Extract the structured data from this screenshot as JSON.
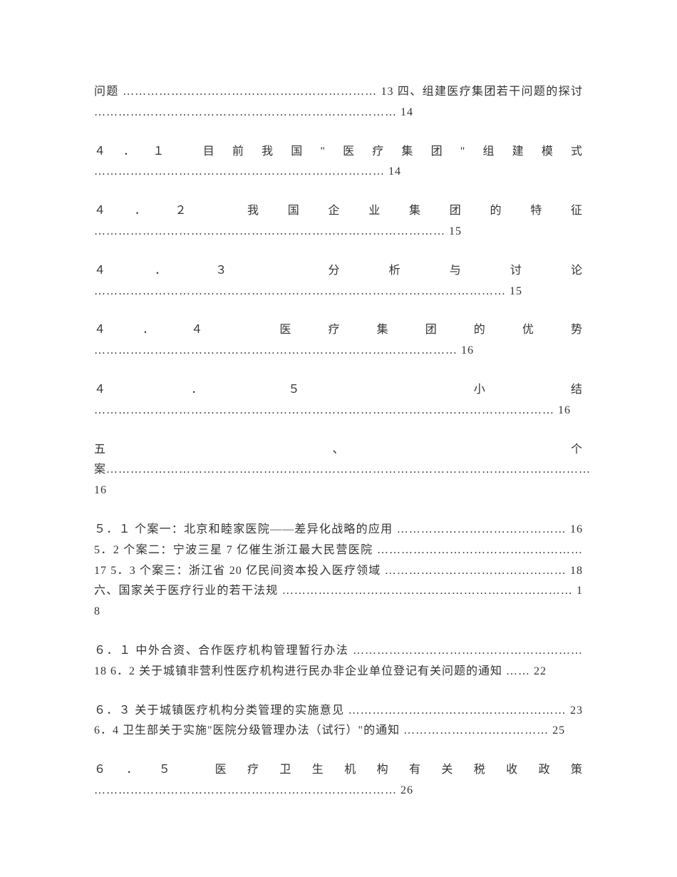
{
  "document": {
    "type": "table-of-contents",
    "font_family": "SimSun",
    "font_size": 16,
    "text_color": "#333333",
    "background_color": "#ffffff",
    "line_height": 1.8,
    "entries": [
      {
        "text": "问题 ……………………………………………………… 13 四、组建医疗集团若干问题的探讨 ………………………………………………………………… 14"
      },
      {
        "text": "４．１ 目前我国\"医疗集团\"组建模式 ……………………………………………………………… 14"
      },
      {
        "text": "４．２ 我国企业集团的特征 …………………………………………………………………………… 15"
      },
      {
        "text": "４．３ 分析与讨论 ………………………………………………………………………………………… 15"
      },
      {
        "text": "４．４ 医疗集团的优势 ……………………………………………………………………………… 16"
      },
      {
        "text": "４．５ 小结 …………………………………………………………………………………………………… 16"
      },
      {
        "text": "五、个案………………………………………………………………………………………………………… 16"
      },
      {
        "text": "５．１ 个案一：北京和睦家医院——差异化战略的应用 …………………………………… 16 5．2 个案二：宁波三星 7 亿催生浙江最大民营医院 …………………………………………… 17 5．3 个案三：浙江省 20 亿民间资本投入医疗领域 ……………………………………… 18 六、国家关于医疗行业的若干法规 ……………………………………………………………… 18"
      },
      {
        "text": "６．１ 中外合资、合作医疗机构管理暂行办法 ………………………………………………… 18 6．2 关于城镇非营利性医疗机构进行民办非企业单位登记有关问题的通知 …… 22"
      },
      {
        "text": "６．３ 关于城镇医疗机构分类管理的实施意见 ……………………………………………… 23 6．4 卫生部关于实施\"医院分级管理办法（试行）\"的通知 ……………………………… 25"
      },
      {
        "text": "６．５ 医疗卫生机构有关税收政策 ………………………………………………………………… 26"
      }
    ]
  }
}
